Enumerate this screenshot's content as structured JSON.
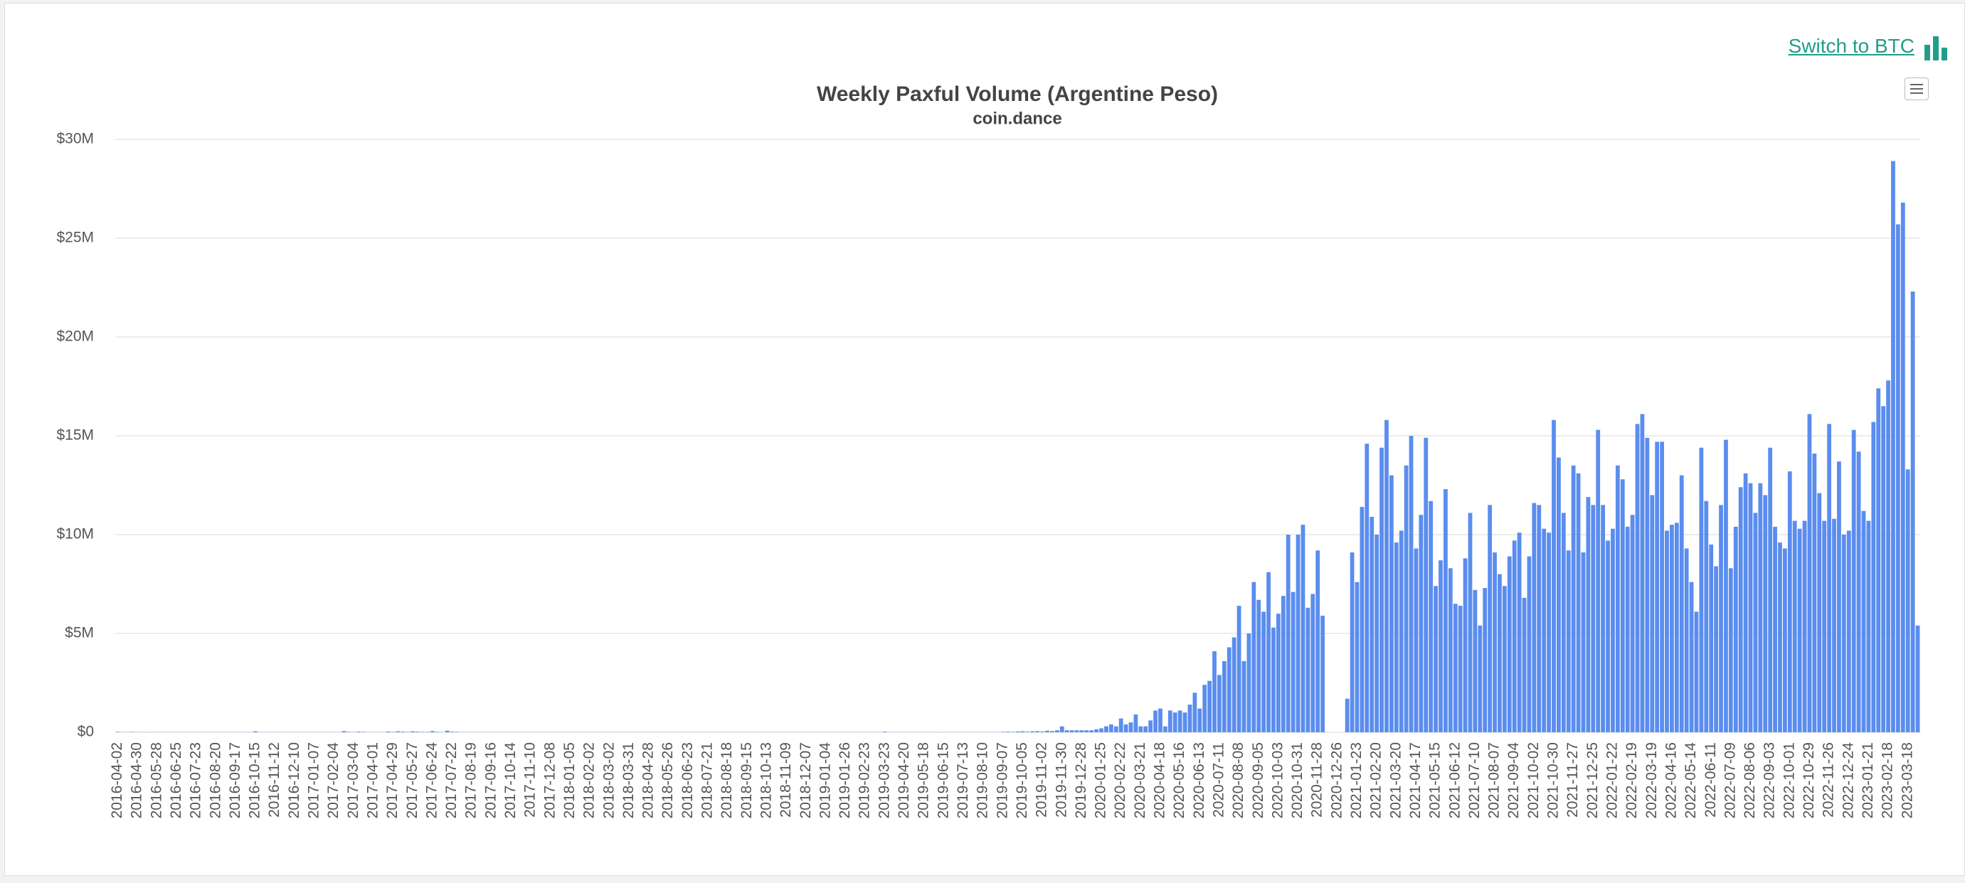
{
  "toolbar": {
    "link": "Switch to BTC"
  },
  "chart_data": {
    "type": "bar",
    "title": "Weekly Paxful Volume (Argentine Peso)",
    "subtitle": "coin.dance",
    "color": "#5b8dee",
    "grid": true,
    "ylim": [
      0,
      30
    ],
    "yticks": [
      {
        "value": 0,
        "label": "$0"
      },
      {
        "value": 5,
        "label": "$5M"
      },
      {
        "value": 10,
        "label": "$10M"
      },
      {
        "value": 15,
        "label": "$15M"
      },
      {
        "value": 20,
        "label": "$20M"
      },
      {
        "value": 25,
        "label": "$25M"
      },
      {
        "value": 30,
        "label": "$30M"
      }
    ],
    "categories": [
      "2016-04-02",
      null,
      null,
      null,
      "2016-04-30",
      null,
      null,
      null,
      "2016-05-28",
      null,
      null,
      null,
      "2016-06-25",
      null,
      null,
      null,
      "2016-07-23",
      null,
      null,
      null,
      "2016-08-20",
      null,
      null,
      null,
      "2016-09-17",
      null,
      null,
      null,
      "2016-10-15",
      null,
      null,
      null,
      "2016-11-12",
      null,
      null,
      null,
      "2016-12-10",
      null,
      null,
      null,
      "2017-01-07",
      null,
      null,
      null,
      "2017-02-04",
      null,
      null,
      null,
      "2017-03-04",
      null,
      null,
      null,
      "2017-04-01",
      null,
      null,
      null,
      "2017-04-29",
      null,
      null,
      null,
      "2017-05-27",
      null,
      null,
      null,
      "2017-06-24",
      null,
      null,
      null,
      "2017-07-22",
      null,
      null,
      null,
      "2017-08-19",
      null,
      null,
      null,
      "2017-09-16",
      null,
      null,
      null,
      "2017-10-14",
      null,
      null,
      null,
      "2017-11-10",
      null,
      null,
      null,
      "2017-12-08",
      null,
      null,
      null,
      "2018-01-05",
      null,
      null,
      null,
      "2018-02-02",
      null,
      null,
      null,
      "2018-03-02",
      null,
      null,
      null,
      "2018-03-31",
      null,
      null,
      null,
      "2018-04-28",
      null,
      null,
      null,
      "2018-05-26",
      null,
      null,
      null,
      "2018-06-23",
      null,
      null,
      null,
      "2018-07-21",
      null,
      null,
      null,
      "2018-08-18",
      null,
      null,
      null,
      "2018-09-15",
      null,
      null,
      null,
      "2018-10-13",
      null,
      null,
      null,
      "2018-11-09",
      null,
      null,
      null,
      "2018-12-07",
      null,
      null,
      null,
      "2019-01-04",
      null,
      null,
      null,
      "2019-01-26",
      null,
      null,
      null,
      "2019-02-23",
      null,
      null,
      null,
      "2019-03-23",
      null,
      null,
      null,
      "2019-04-20",
      null,
      null,
      null,
      "2019-05-18",
      null,
      null,
      null,
      "2019-06-15",
      null,
      null,
      null,
      "2019-07-13",
      null,
      null,
      null,
      "2019-08-10",
      null,
      null,
      null,
      "2019-09-07",
      null,
      null,
      null,
      "2019-10-05",
      null,
      null,
      null,
      "2019-11-02",
      null,
      null,
      null,
      "2019-11-30",
      null,
      null,
      null,
      "2019-12-28",
      null,
      null,
      null,
      "2020-01-25",
      null,
      null,
      null,
      "2020-02-22",
      null,
      null,
      null,
      "2020-03-21",
      null,
      null,
      null,
      "2020-04-18",
      null,
      null,
      null,
      "2020-05-16",
      null,
      null,
      null,
      "2020-06-13",
      null,
      null,
      null,
      "2020-07-11",
      null,
      null,
      null,
      "2020-08-08",
      null,
      null,
      null,
      "2020-09-05",
      null,
      null,
      null,
      "2020-10-03",
      null,
      null,
      null,
      "2020-10-31",
      null,
      null,
      null,
      "2020-11-28",
      null,
      null,
      null,
      "2020-12-26",
      null,
      null,
      null,
      "2021-01-23",
      null,
      null,
      null,
      "2021-02-20",
      null,
      null,
      null,
      "2021-03-20",
      null,
      null,
      null,
      "2021-04-17",
      null,
      null,
      null,
      "2021-05-15",
      null,
      null,
      null,
      "2021-06-12",
      null,
      null,
      null,
      "2021-07-10",
      null,
      null,
      null,
      "2021-08-07",
      null,
      null,
      null,
      "2021-09-04",
      null,
      null,
      null,
      "2021-10-02",
      null,
      null,
      null,
      "2021-10-30",
      null,
      null,
      null,
      "2021-11-27",
      null,
      null,
      null,
      "2021-12-25",
      null,
      null,
      null,
      "2022-01-22",
      null,
      null,
      null,
      "2022-02-19",
      null,
      null,
      null,
      "2022-03-19",
      null,
      null,
      null,
      "2022-04-16",
      null,
      null,
      null,
      "2022-05-14",
      null,
      null,
      null,
      "2022-06-11",
      null,
      null,
      null,
      "2022-07-09",
      null,
      null,
      null,
      "2022-08-06",
      null,
      null,
      null,
      "2022-09-03",
      null,
      null,
      null,
      "2022-10-01",
      null,
      null,
      null,
      "2022-10-29",
      null,
      null,
      null,
      "2022-11-26",
      null,
      null,
      null,
      "2022-12-24",
      null,
      null,
      null,
      "2023-01-21",
      null,
      null,
      null,
      "2023-02-18",
      null,
      null,
      null,
      "2023-03-18",
      null,
      null
    ],
    "values": [
      0.02,
      0.01,
      0.01,
      0.02,
      0.01,
      0.01,
      0.01,
      0.01,
      0.01,
      0.01,
      0.01,
      0.01,
      0.01,
      0.01,
      0.01,
      0.01,
      0.01,
      0.01,
      0.01,
      0.01,
      0.01,
      0.01,
      0.01,
      0.01,
      0.01,
      0.01,
      0.01,
      0.01,
      0.05,
      0.01,
      0.01,
      0.01,
      0.01,
      0.01,
      0.01,
      0.01,
      0.01,
      0.01,
      0.01,
      0.01,
      0.01,
      0.01,
      0.01,
      0.01,
      0.01,
      0.01,
      0.06,
      0.02,
      0.01,
      0.03,
      0.02,
      0.01,
      0.01,
      0.01,
      0.01,
      0.04,
      0.02,
      0.05,
      0.03,
      0.02,
      0.05,
      0.03,
      0.02,
      0.02,
      0.06,
      0.02,
      0.01,
      0.08,
      0.03,
      0.02,
      0.01,
      0.01,
      0.01,
      0.01,
      0.01,
      0.01,
      0.01,
      0.01,
      0.01,
      0.01,
      0.01,
      0.01,
      0.01,
      0.01,
      0.01,
      0.01,
      0.01,
      0.01,
      0.01,
      0.01,
      0.01,
      0.01,
      0.01,
      0.01,
      0.01,
      0.01,
      0.01,
      0.01,
      0.01,
      0.01,
      0.01,
      0.01,
      0.01,
      0.01,
      0.01,
      0.01,
      0.01,
      0.01,
      0.01,
      0.01,
      0.01,
      0.01,
      0.01,
      0.01,
      0.01,
      0.01,
      0.01,
      0.01,
      0.01,
      0.01,
      0.01,
      0.01,
      0.01,
      0.01,
      0.01,
      0.01,
      0.01,
      0.01,
      0.01,
      0.01,
      0.01,
      0.01,
      0.01,
      0.01,
      0.01,
      0.01,
      0.01,
      0.01,
      0.01,
      0.01,
      0.01,
      0.01,
      0.01,
      0.01,
      0.01,
      0.01,
      0.01,
      0.01,
      0.01,
      0.01,
      0.01,
      0.01,
      0.01,
      0.01,
      0.01,
      0.01,
      0.03,
      0.01,
      0.01,
      0.01,
      0.01,
      0.01,
      0.01,
      0.01,
      0.01,
      0.01,
      0.01,
      0.01,
      0.01,
      0.01,
      0.01,
      0.01,
      0.01,
      0.01,
      0.01,
      0.01,
      0.01,
      0.01,
      0.01,
      0.01,
      0.02,
      0.03,
      0.02,
      0.04,
      0.05,
      0.03,
      0.05,
      0.06,
      0.04,
      0.08,
      0.06,
      0.1,
      0.3,
      0.1,
      0.1,
      0.1,
      0.1,
      0.1,
      0.1,
      0.15,
      0.2,
      0.3,
      0.4,
      0.3,
      0.7,
      0.4,
      0.5,
      0.9,
      0.3,
      0.3,
      0.6,
      1.1,
      1.2,
      0.3,
      1.1,
      1.0,
      1.1,
      1.0,
      1.4,
      2.0,
      1.2,
      2.4,
      2.6,
      4.1,
      2.9,
      3.6,
      4.3,
      4.8,
      6.4,
      3.6,
      5.0,
      7.6,
      6.7,
      6.1,
      8.1,
      5.3,
      6.0,
      6.9,
      10.0,
      7.1,
      10.0,
      10.5,
      6.3,
      7.0,
      9.2,
      5.9,
      null,
      null,
      null,
      null,
      1.7,
      9.1,
      7.6,
      11.4,
      14.6,
      10.9,
      10.0,
      14.4,
      15.8,
      13.0,
      9.6,
      10.2,
      13.5,
      15.0,
      9.3,
      11.0,
      14.9,
      11.7,
      7.4,
      8.7,
      12.3,
      8.3,
      6.5,
      6.4,
      8.8,
      11.1,
      7.2,
      5.4,
      7.3,
      11.5,
      9.1,
      8.0,
      7.4,
      8.9,
      9.7,
      10.1,
      6.8,
      8.9,
      11.6,
      11.5,
      10.3,
      10.1,
      15.8,
      13.9,
      11.1,
      9.2,
      13.5,
      13.1,
      9.1,
      11.9,
      11.5,
      15.3,
      11.5,
      9.7,
      10.3,
      13.5,
      12.8,
      10.4,
      11.0,
      15.6,
      16.1,
      14.9,
      12.0,
      14.7,
      14.7,
      10.2,
      10.5,
      10.6,
      13.0,
      9.3,
      7.6,
      6.1,
      14.4,
      11.7,
      9.5,
      8.4,
      11.5,
      14.8,
      8.3,
      10.4,
      12.4,
      13.1,
      12.6,
      11.1,
      12.6,
      12.0,
      14.4,
      10.4,
      9.6,
      9.3,
      13.2,
      10.7,
      10.3,
      10.7,
      16.1,
      14.1,
      12.1,
      10.7,
      15.6,
      10.8,
      13.7,
      10.0,
      10.2,
      15.3,
      14.2,
      11.2,
      10.7,
      15.7,
      17.4,
      16.5,
      17.8,
      28.9,
      25.7,
      26.8,
      13.3,
      22.3,
      5.4
    ]
  }
}
